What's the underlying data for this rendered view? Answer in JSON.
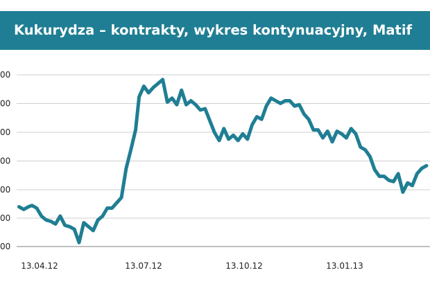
{
  "title": "Kukurydza – kontrakty, wykres kontynuacyjny, Matif",
  "colors": {
    "title_bg": "#1f7e93",
    "title_text": "#ffffff",
    "line": "#1f7e93",
    "grid": "#cfcfcf",
    "axis": "#9a9a9a"
  },
  "chart_data": {
    "type": "line",
    "title": "Kukurydza – kontrakty, wykres kontynuacyjny, Matif",
    "xlabel": "",
    "ylabel": "",
    "x_ticks": [
      "13.04.12",
      "13.07.12",
      "13.10.12",
      "13.01.13"
    ],
    "y_tick_labels": [
      "00",
      "00",
      "00",
      "00",
      "00",
      "00",
      "00"
    ],
    "grid": true,
    "legend": "none",
    "series": [
      {
        "x": [
          "2012-04-02",
          "2012-04-06",
          "2012-04-10",
          "2012-04-13",
          "2012-04-17",
          "2012-04-21",
          "2012-04-25",
          "2012-04-29",
          "2012-05-03",
          "2012-05-07",
          "2012-05-11",
          "2012-05-15",
          "2012-05-19",
          "2012-05-23",
          "2012-05-27",
          "2012-05-31",
          "2012-06-04",
          "2012-06-08",
          "2012-06-12",
          "2012-06-16",
          "2012-06-20",
          "2012-06-24",
          "2012-06-28",
          "2012-07-02",
          "2012-07-06",
          "2012-07-10",
          "2012-07-13",
          "2012-07-17",
          "2012-07-21",
          "2012-07-25",
          "2012-07-29",
          "2012-08-02",
          "2012-08-06",
          "2012-08-10",
          "2012-08-14",
          "2012-08-18",
          "2012-08-22",
          "2012-08-26",
          "2012-08-30",
          "2012-09-03",
          "2012-09-07",
          "2012-09-11",
          "2012-09-15",
          "2012-09-19",
          "2012-09-23",
          "2012-09-27",
          "2012-10-01",
          "2012-10-05",
          "2012-10-09",
          "2012-10-13",
          "2012-10-17",
          "2012-10-21",
          "2012-10-25",
          "2012-10-29",
          "2012-11-02",
          "2012-11-06",
          "2012-11-10",
          "2012-11-14",
          "2012-11-18",
          "2012-11-22",
          "2012-11-26",
          "2012-11-30",
          "2012-12-04",
          "2012-12-08",
          "2012-12-12",
          "2012-12-16",
          "2012-12-20",
          "2012-12-24",
          "2012-12-28",
          "2013-01-01",
          "2013-01-05",
          "2013-01-09",
          "2013-01-13",
          "2013-01-17",
          "2013-01-21",
          "2013-01-25",
          "2013-01-29",
          "2013-02-02",
          "2013-02-06",
          "2013-02-10",
          "2013-02-14",
          "2013-02-18",
          "2013-02-22",
          "2013-02-26",
          "2013-03-02",
          "2013-03-06",
          "2013-03-10",
          "2013-03-14"
        ],
        "y": [
          0.3,
          0.28,
          0.3,
          0.31,
          0.29,
          0.23,
          0.2,
          0.19,
          0.17,
          0.23,
          0.16,
          0.15,
          0.13,
          0.03,
          0.18,
          0.15,
          0.12,
          0.2,
          0.23,
          0.29,
          0.29,
          0.33,
          0.37,
          0.59,
          0.73,
          0.88,
          1.13,
          1.21,
          1.16,
          1.2,
          1.23,
          1.26,
          1.09,
          1.12,
          1.07,
          1.18,
          1.07,
          1.1,
          1.07,
          1.03,
          1.04,
          0.95,
          0.86,
          0.8,
          0.89,
          0.81,
          0.84,
          0.8,
          0.85,
          0.81,
          0.92,
          0.98,
          0.96,
          1.06,
          1.12,
          1.1,
          1.08,
          1.1,
          1.1,
          1.06,
          1.07,
          1.0,
          0.96,
          0.88,
          0.88,
          0.82,
          0.87,
          0.79,
          0.87,
          0.85,
          0.82,
          0.89,
          0.85,
          0.75,
          0.73,
          0.68,
          0.58,
          0.53,
          0.53,
          0.5,
          0.49,
          0.55,
          0.41,
          0.48,
          0.46,
          0.55,
          0.59,
          0.61
        ]
      }
    ]
  }
}
